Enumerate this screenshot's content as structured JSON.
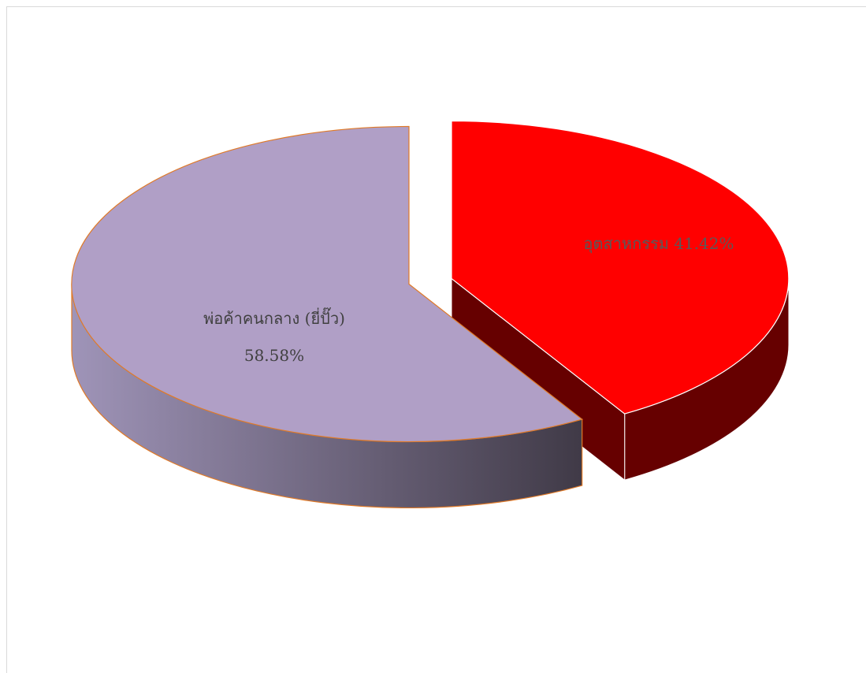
{
  "chart_data": {
    "type": "pie",
    "style": "3d-exploded",
    "title": "",
    "legend": "none",
    "slices": [
      {
        "label": "อุตสาหกรรม",
        "percent_label": "41.42%",
        "value": 41.42,
        "top_color": "#ff0000",
        "side_color": "#660000",
        "label_color": "#595959",
        "exploded": true
      },
      {
        "label": "พ่อค้าคนกลาง (ยี่ปั๊ว)",
        "percent_label": "58.58%",
        "value": 58.58,
        "top_color": "#b09fc6",
        "side_color_light": "#9f94b8",
        "side_color_dark": "#403a47",
        "outline_color": "#e07a28",
        "label_color": "#404040",
        "exploded": false
      }
    ]
  }
}
